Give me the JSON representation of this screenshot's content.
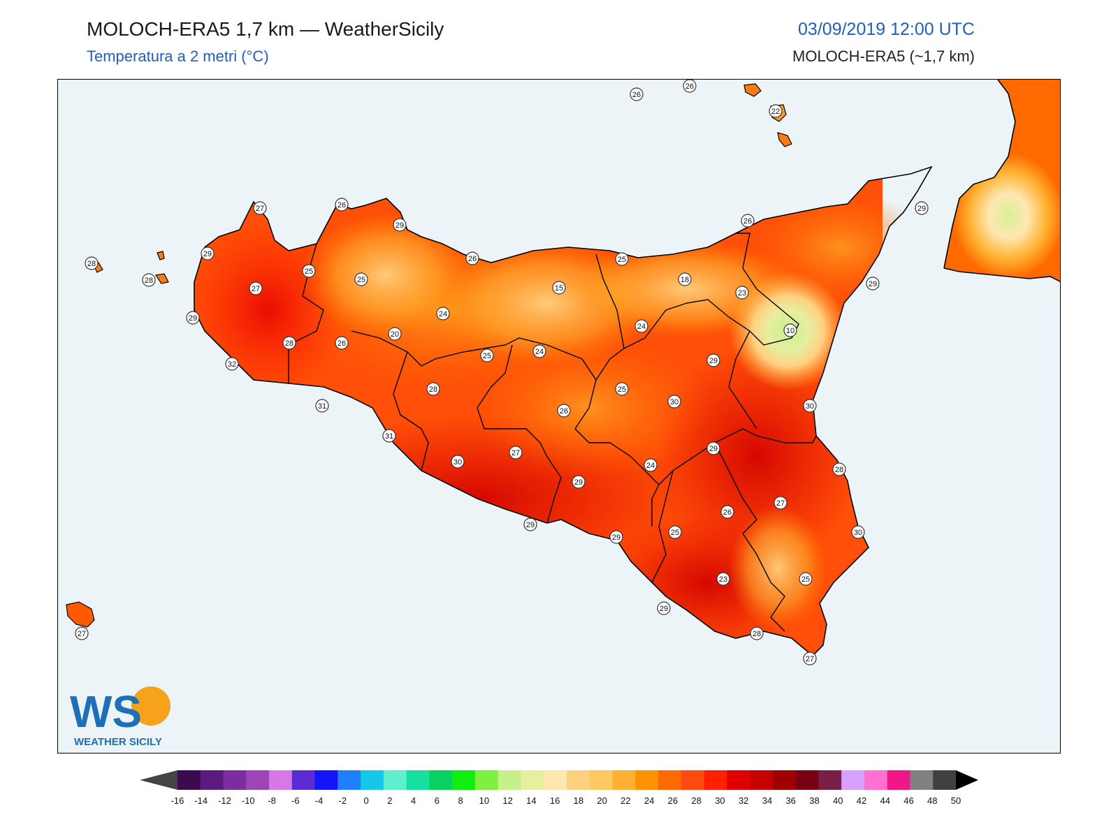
{
  "header": {
    "title": "MOLOCH-ERA5 1,7 km — WeatherSicily",
    "subtitle": "Temperatura a 2 metri (°C)",
    "datetime": "03/09/2019 12:00 UTC",
    "model": "MOLOCH-ERA5 (~1,7 km)"
  },
  "logo": {
    "letters": "WS",
    "caption": "WEATHER SICILY"
  },
  "colors": {
    "sea": "#edf4f8",
    "title_blue": "#1f5fbf"
  },
  "colorbar": {
    "labels": [
      "-16",
      "-14",
      "-12",
      "-10",
      "-8",
      "-6",
      "-4",
      "-2",
      "0",
      "2",
      "4",
      "6",
      "8",
      "10",
      "12",
      "14",
      "16",
      "18",
      "20",
      "22",
      "24",
      "26",
      "28",
      "30",
      "32",
      "34",
      "36",
      "38",
      "40",
      "42",
      "44",
      "46",
      "48",
      "50"
    ],
    "colors": [
      "#3c0a4f",
      "#5a1a80",
      "#7c2da0",
      "#9c46b8",
      "#d977e8",
      "#5a2bd2",
      "#1414ff",
      "#1f7fff",
      "#16c8e8",
      "#5ef0cc",
      "#16e0a0",
      "#0ad060",
      "#10f010",
      "#7ef040",
      "#c8f08a",
      "#e6eea0",
      "#ffe8b0",
      "#ffd080",
      "#ffc860",
      "#ffb030",
      "#ff9200",
      "#ff6a00",
      "#ff4a10",
      "#ff2000",
      "#e00000",
      "#c80000",
      "#a00000",
      "#780010",
      "#7a2048",
      "#d8a0ff",
      "#ff70d0",
      "#f01888",
      "#808080",
      "#404040"
    ]
  },
  "stations": [
    {
      "v": "26"
    },
    {
      "v": "26"
    },
    {
      "v": "22"
    },
    {
      "v": "27"
    },
    {
      "v": "26"
    },
    {
      "v": "29"
    },
    {
      "v": "29"
    },
    {
      "v": "28"
    },
    {
      "v": "28"
    },
    {
      "v": "25"
    },
    {
      "v": "25"
    },
    {
      "v": "27"
    },
    {
      "v": "26"
    },
    {
      "v": "25"
    },
    {
      "v": "26"
    },
    {
      "v": "29"
    },
    {
      "v": "15"
    },
    {
      "v": "18"
    },
    {
      "v": "23"
    },
    {
      "v": "29"
    },
    {
      "v": "29"
    },
    {
      "v": "24"
    },
    {
      "v": "24"
    },
    {
      "v": "10"
    },
    {
      "v": "20"
    },
    {
      "v": "28"
    },
    {
      "v": "26"
    },
    {
      "v": "32"
    },
    {
      "v": "25"
    },
    {
      "v": "24"
    },
    {
      "v": "29"
    },
    {
      "v": "28"
    },
    {
      "v": "25"
    },
    {
      "v": "31"
    },
    {
      "v": "26"
    },
    {
      "v": "30"
    },
    {
      "v": "30"
    },
    {
      "v": "31"
    },
    {
      "v": "27"
    },
    {
      "v": "29"
    },
    {
      "v": "30"
    },
    {
      "v": "24"
    },
    {
      "v": "28"
    },
    {
      "v": "29"
    },
    {
      "v": "27"
    },
    {
      "v": "26"
    },
    {
      "v": "29"
    },
    {
      "v": "25"
    },
    {
      "v": "29"
    },
    {
      "v": "30"
    },
    {
      "v": "23"
    },
    {
      "v": "25"
    },
    {
      "v": "29"
    },
    {
      "v": "28"
    },
    {
      "v": "27"
    },
    {
      "v": "27"
    }
  ]
}
